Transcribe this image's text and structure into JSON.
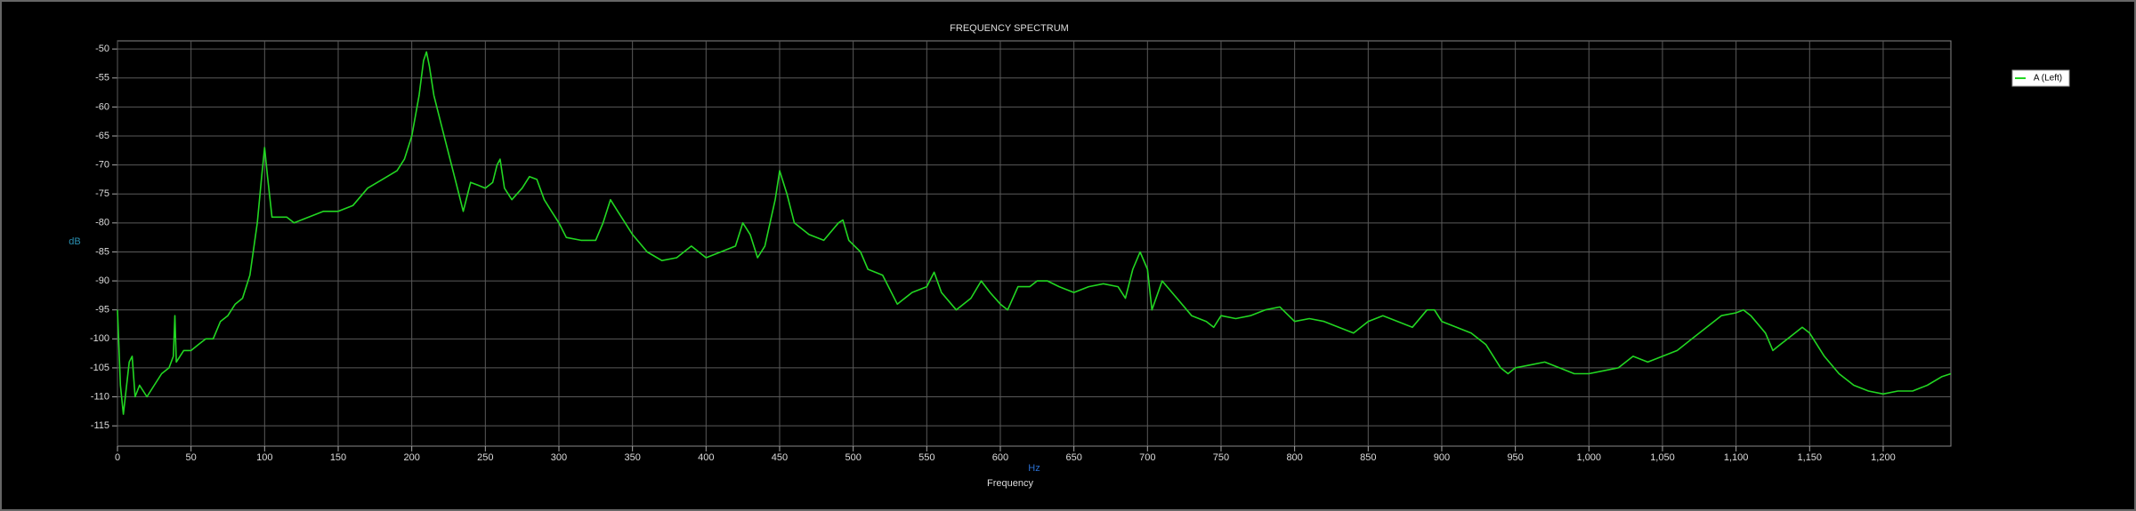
{
  "chart_data": {
    "type": "line",
    "title": "FREQUENCY SPECTRUM",
    "x_label": "Frequency",
    "x_unit": "Hz",
    "y_unit": "dB",
    "grid": true,
    "legend": "right",
    "xlim": [
      0,
      1246
    ],
    "ylim": [
      -118.5,
      -48.6
    ],
    "xticks": [
      0,
      50,
      100,
      150,
      200,
      250,
      300,
      350,
      400,
      450,
      500,
      550,
      600,
      650,
      700,
      750,
      800,
      850,
      900,
      950,
      {
        "value": 1000,
        "label": "1,000"
      },
      {
        "value": 1050,
        "label": "1,050"
      },
      {
        "value": 1100,
        "label": "1,100"
      },
      {
        "value": 1150,
        "label": "1,150"
      },
      {
        "value": 1200,
        "label": "1,200"
      }
    ],
    "yticks": [
      -50,
      -55,
      -60,
      -65,
      -70,
      -75,
      -80,
      -85,
      -90,
      -95,
      -100,
      -105,
      -110,
      -115
    ],
    "x": [
      0,
      2,
      4,
      8,
      10,
      12,
      15,
      20,
      25,
      30,
      35,
      38,
      39,
      40,
      45,
      50,
      55,
      60,
      65,
      70,
      75,
      80,
      85,
      90,
      95,
      98,
      100,
      102,
      105,
      110,
      115,
      120,
      130,
      140,
      150,
      160,
      170,
      180,
      190,
      195,
      200,
      205,
      208,
      210,
      212,
      215,
      220,
      225,
      230,
      235,
      240,
      245,
      250,
      255,
      258,
      260,
      263,
      268,
      275,
      280,
      285,
      290,
      295,
      300,
      305,
      315,
      325,
      330,
      335,
      340,
      345,
      350,
      360,
      370,
      380,
      390,
      400,
      410,
      420,
      425,
      430,
      435,
      440,
      447,
      450,
      455,
      460,
      470,
      480,
      490,
      493,
      497,
      505,
      510,
      520,
      530,
      540,
      550,
      555,
      560,
      570,
      580,
      587,
      593,
      600,
      605,
      612,
      620,
      625,
      632,
      640,
      650,
      660,
      670,
      680,
      685,
      690,
      695,
      700,
      703,
      710,
      720,
      730,
      740,
      745,
      750,
      760,
      770,
      780,
      790,
      800,
      810,
      820,
      830,
      840,
      850,
      860,
      870,
      880,
      890,
      895,
      900,
      910,
      920,
      930,
      940,
      945,
      950,
      960,
      970,
      980,
      990,
      1000,
      1010,
      1020,
      1030,
      1040,
      1050,
      1060,
      1070,
      1080,
      1090,
      1100,
      1105,
      1110,
      1120,
      1125,
      1130,
      1140,
      1145,
      1150,
      1160,
      1170,
      1180,
      1190,
      1200,
      1210,
      1220,
      1230,
      1240,
      1246
    ],
    "series": [
      {
        "name": "A (Left)",
        "color": "#22d622",
        "values": [
          -95,
          -108,
          -113,
          -104,
          -103,
          -110,
          -108,
          -110,
          -108,
          -106,
          -105,
          -103,
          -96,
          -104,
          -102,
          -102,
          -101,
          -100,
          -100,
          -97,
          -96,
          -94,
          -93,
          -89,
          -80,
          -72,
          -67,
          -72,
          -79,
          -79,
          -79,
          -80,
          -79,
          -78,
          -78,
          -77,
          -74,
          -72.5,
          -71,
          -69,
          -65,
          -58,
          -52,
          -50.5,
          -53,
          -58,
          -63,
          -68,
          -73,
          -78,
          -73,
          -73.5,
          -74,
          -73,
          -70,
          -69,
          -74,
          -76,
          -74,
          -72,
          -72.5,
          -76,
          -78,
          -80,
          -82.5,
          -83,
          -83,
          -80,
          -76,
          -78,
          -80,
          -82,
          -85,
          -86.5,
          -86,
          -84,
          -86,
          -85,
          -84,
          -80,
          -82,
          -86,
          -84,
          -76,
          -71,
          -75,
          -80,
          -82,
          -83,
          -80,
          -79.5,
          -83,
          -85,
          -88,
          -89,
          -94,
          -92,
          -91,
          -88.5,
          -92,
          -95,
          -93,
          -90,
          -92,
          -94,
          -95,
          -91,
          -91,
          -90,
          -90,
          -91,
          -92,
          -91,
          -90.5,
          -91,
          -93,
          -88,
          -85,
          -88,
          -95,
          -90,
          -93,
          -96,
          -97,
          -98,
          -96,
          -96.5,
          -96,
          -95,
          -94.5,
          -97,
          -96.5,
          -97,
          -98,
          -99,
          -97,
          -96,
          -97,
          -98,
          -95,
          -95,
          -97,
          -98,
          -99,
          -101,
          -105,
          -106,
          -105,
          -104.5,
          -104,
          -105,
          -106,
          -106,
          -105.5,
          -105,
          -103,
          -104,
          -103,
          -102,
          -100,
          -98,
          -96,
          -95.5,
          -95,
          -96,
          -99,
          -102,
          -101,
          -99,
          -98,
          -99,
          -103,
          -106,
          -108,
          -109,
          -109.5,
          -109,
          -109,
          -108,
          -106.5,
          -106
        ]
      }
    ]
  }
}
